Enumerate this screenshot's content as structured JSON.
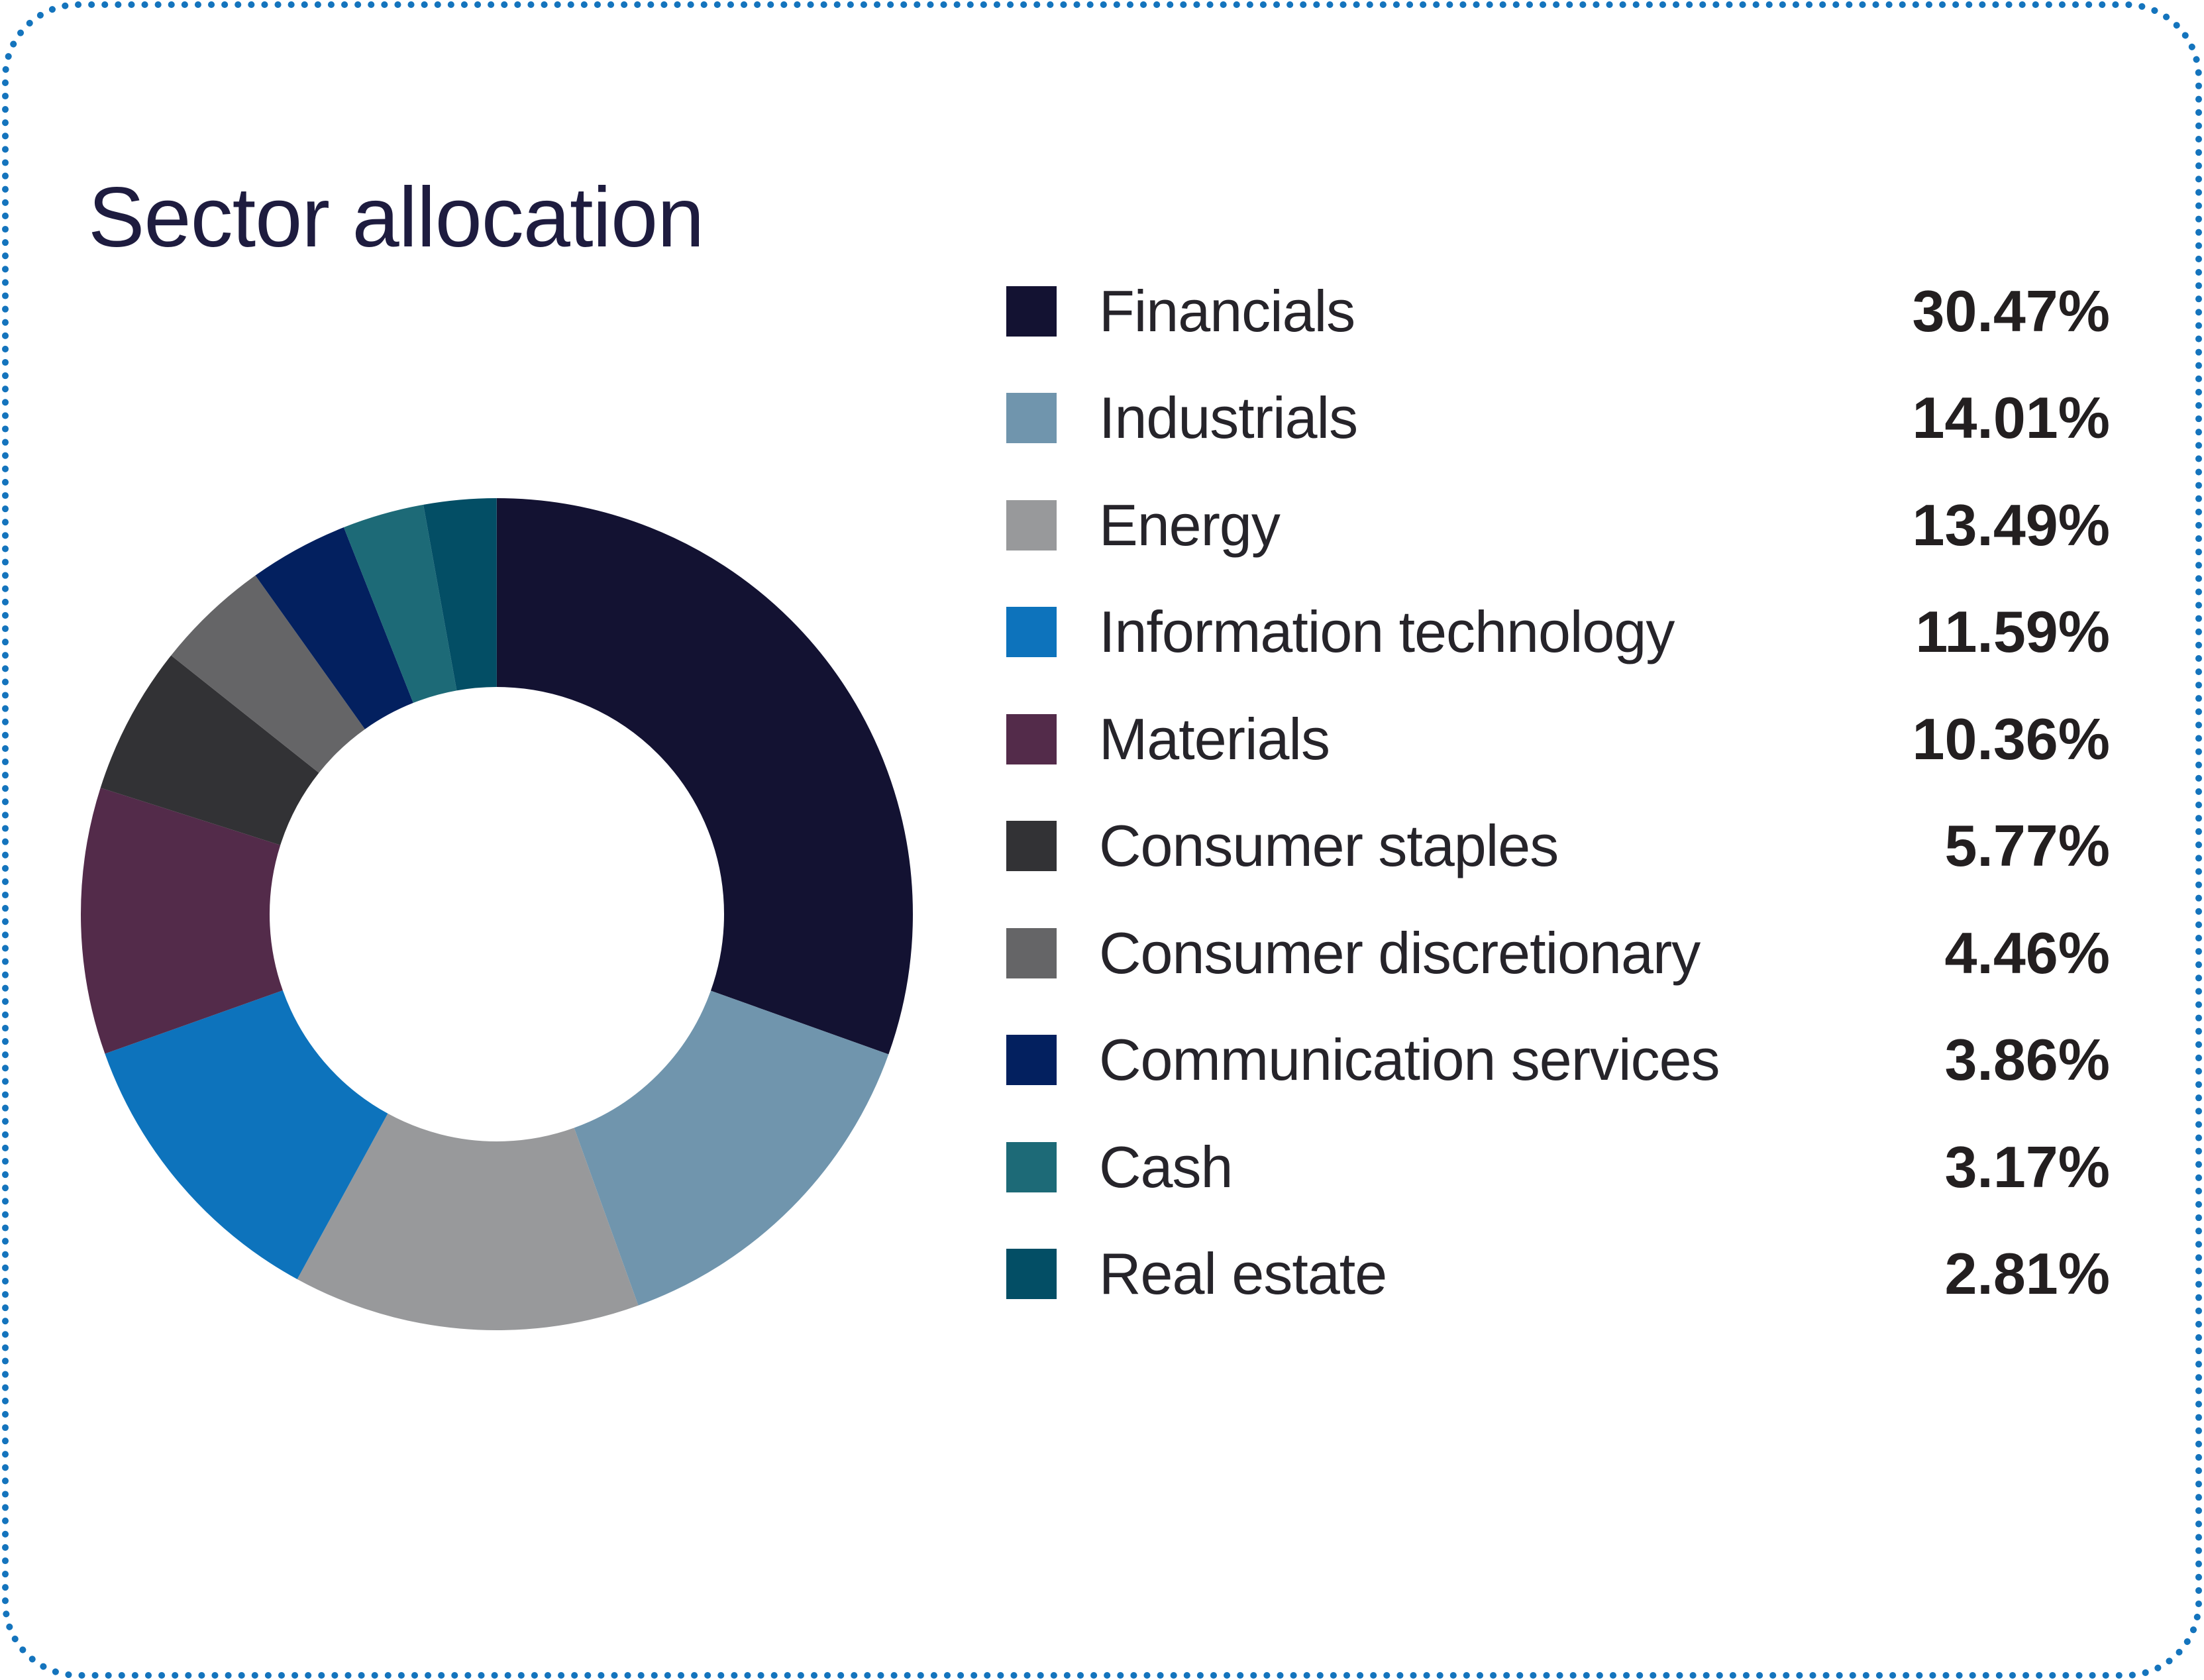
{
  "header": {
    "title": "Sector allocation"
  },
  "border": {
    "color": "#1474bd"
  },
  "chart_data": {
    "type": "pie",
    "subtype": "donut",
    "title": "Sector allocation",
    "legend_position": "right",
    "start_angle_deg": 0,
    "direction": "clockwise",
    "inner_radius_ratio": 0.55,
    "categories": [
      "Financials",
      "Industrials",
      "Energy",
      "Information technology",
      "Materials",
      "Consumer staples",
      "Consumer discretionary",
      "Communication services",
      "Cash",
      "Real estate"
    ],
    "values": [
      30.47,
      14.01,
      13.49,
      11.59,
      10.36,
      5.77,
      4.46,
      3.86,
      3.17,
      2.81
    ],
    "labels": [
      "30.47%",
      "14.01%",
      "13.49%",
      "11.59%",
      "10.36%",
      "5.77%",
      "4.46%",
      "3.86%",
      "3.17%",
      "2.81%"
    ],
    "colors": [
      "#131232",
      "#7095ad",
      "#98999b",
      "#0d73bc",
      "#532b4a",
      "#323235",
      "#656567",
      "#03205f",
      "#1d6a77",
      "#034e65"
    ]
  }
}
